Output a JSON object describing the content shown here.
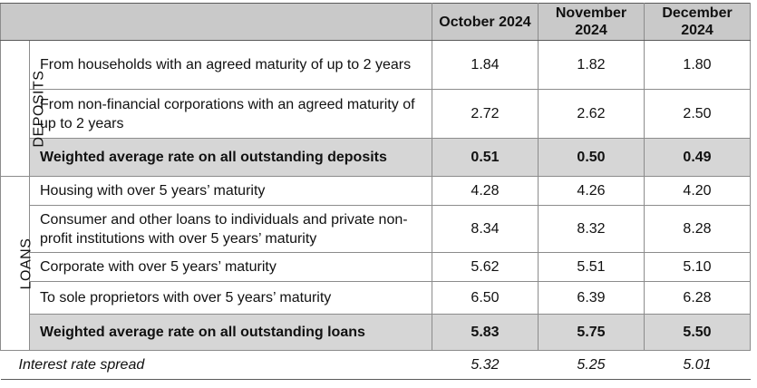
{
  "header": {
    "months": [
      "October 2024",
      "November 2024",
      "December 2024"
    ]
  },
  "deposits": {
    "section_label": "DEPOSITS",
    "rows": [
      {
        "label": "From households with an agreed maturity of up to 2 years",
        "values": [
          "1.84",
          "1.82",
          "1.80"
        ]
      },
      {
        "label": "From non-financial corporations with an agreed maturity of up to 2 years",
        "values": [
          "2.72",
          "2.62",
          "2.50"
        ]
      }
    ],
    "average": {
      "label": "Weighted average rate on all outstanding deposits",
      "values": [
        "0.51",
        "0.50",
        "0.49"
      ]
    }
  },
  "loans": {
    "section_label": "LOANS",
    "rows": [
      {
        "label": "Housing with over 5 years’ maturity",
        "values": [
          "4.28",
          "4.26",
          "4.20"
        ]
      },
      {
        "label": "Consumer and other loans to individuals and private non-profit institutions with over 5 years’ maturity",
        "values": [
          "8.34",
          "8.32",
          "8.28"
        ]
      },
      {
        "label": "Corporate with over 5 years’ maturity",
        "values": [
          "5.62",
          "5.51",
          "5.10"
        ]
      },
      {
        "label": "To sole proprietors with over 5 years’ maturity",
        "values": [
          "6.50",
          "6.39",
          "6.28"
        ]
      }
    ],
    "average": {
      "label": "Weighted average rate on all outstanding loans",
      "values": [
        "5.83",
        "5.75",
        "5.50"
      ]
    }
  },
  "spread": {
    "label": "Interest rate spread",
    "values": [
      "5.32",
      "5.25",
      "5.01"
    ]
  }
}
